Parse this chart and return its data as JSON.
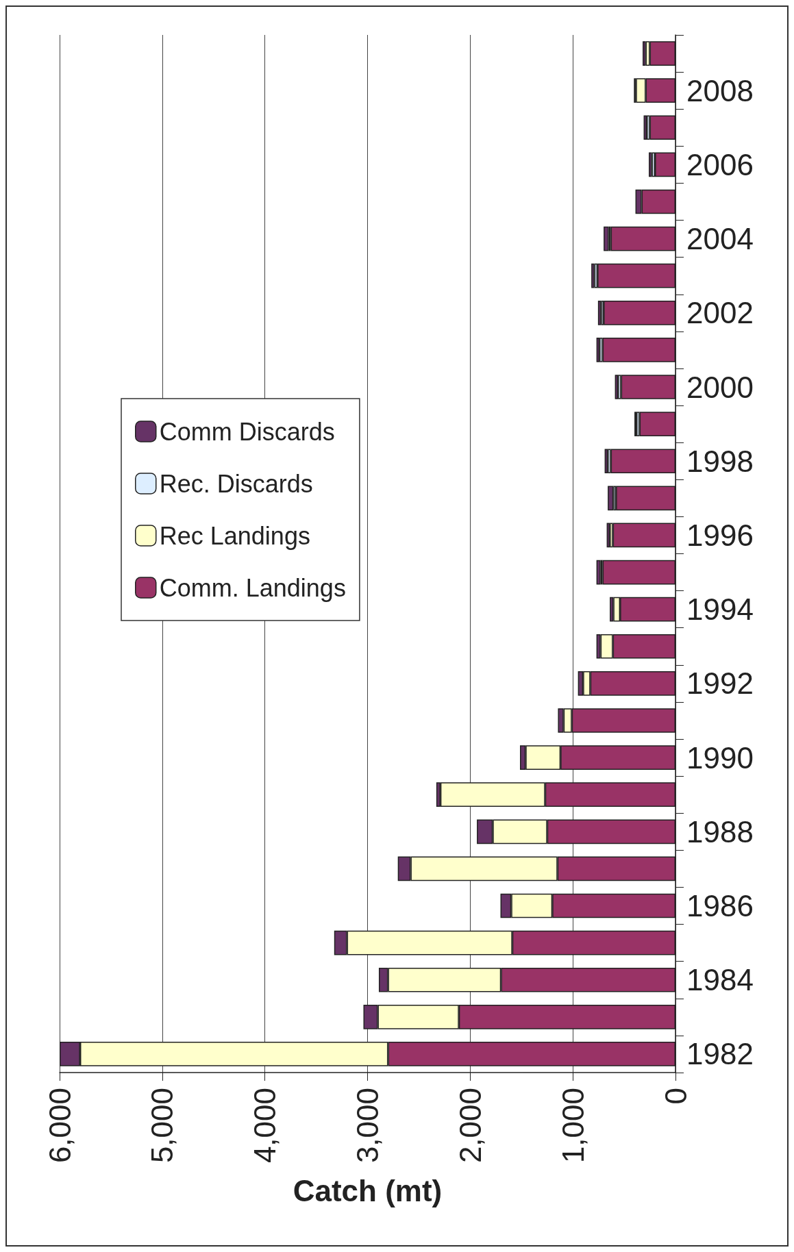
{
  "chart_data": {
    "type": "bar",
    "stacked": true,
    "orientation": "horizontal",
    "xlabel": "Catch (mt)",
    "categories": [
      null,
      "2008",
      null,
      "2006",
      null,
      "2004",
      null,
      "2002",
      null,
      "2000",
      null,
      "1998",
      null,
      "1996",
      null,
      "1994",
      null,
      "1992",
      null,
      "1990",
      null,
      "1988",
      null,
      "1986",
      null,
      "1984",
      null,
      "1982"
    ],
    "series": [
      {
        "name": "Comm. Landings",
        "color": "#993366",
        "values": [
          250,
          290,
          250,
          200,
          330,
          630,
          760,
          700,
          710,
          530,
          350,
          630,
          580,
          610,
          710,
          540,
          610,
          830,
          1010,
          1120,
          1270,
          1250,
          1150,
          1200,
          1590,
          1700,
          2110,
          2800
        ]
      },
      {
        "name": "Rec Landings",
        "color": "#ffffcc",
        "values": [
          40,
          95,
          null,
          null,
          null,
          null,
          null,
          null,
          null,
          null,
          null,
          null,
          null,
          30,
          null,
          65,
          120,
          70,
          80,
          340,
          1020,
          530,
          1430,
          400,
          1610,
          1100,
          790,
          3000
        ]
      },
      {
        "name": "Rec. Discards",
        "color": "#ddeeff",
        "values": [
          null,
          null,
          30,
          30,
          null,
          20,
          30,
          25,
          30,
          30,
          30,
          30,
          25,
          null,
          20,
          null,
          null,
          null,
          null,
          null,
          null,
          null,
          null,
          null,
          null,
          null,
          null,
          null
        ]
      },
      {
        "name": "Comm Discards",
        "color": "#663366",
        "values": [
          30,
          20,
          30,
          30,
          60,
          50,
          30,
          30,
          30,
          30,
          20,
          30,
          55,
          30,
          40,
          35,
          40,
          50,
          55,
          55,
          40,
          155,
          125,
          105,
          125,
          90,
          140,
          200
        ]
      }
    ],
    "xlim": [
      6000,
      0
    ],
    "xticks": [
      0,
      {
        "value": 1000,
        "label": "1,000"
      },
      {
        "value": 2000,
        "label": "2,000"
      },
      {
        "value": 3000,
        "label": "3,000"
      },
      {
        "value": 4000,
        "label": "4,000"
      },
      {
        "value": 5000,
        "label": "5,000"
      },
      {
        "value": 6000,
        "label": "6,000"
      }
    ],
    "grid": "x",
    "legend": "left"
  }
}
